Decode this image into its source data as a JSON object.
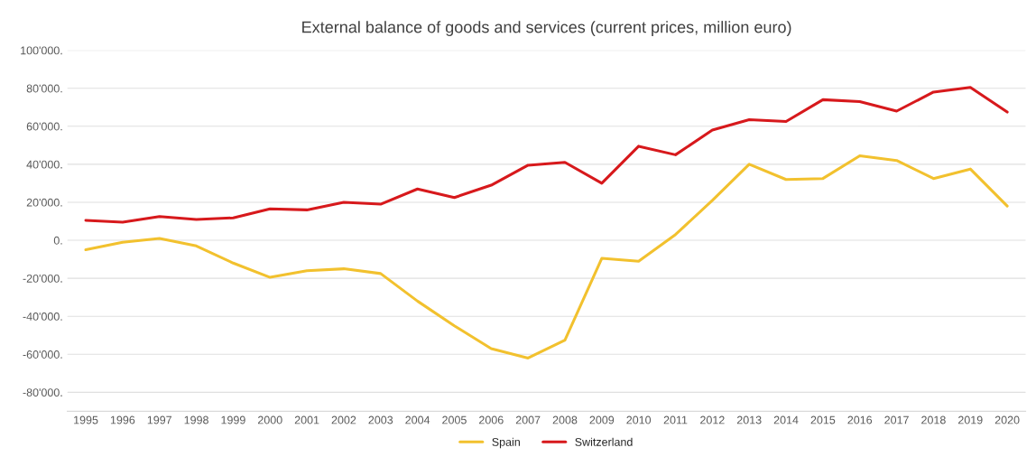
{
  "chart_data": {
    "type": "line",
    "title": "External balance of goods and services (current prices, million euro)",
    "categories": [
      "1995",
      "1996",
      "1997",
      "1998",
      "1999",
      "2000",
      "2001",
      "2002",
      "2003",
      "2004",
      "2005",
      "2006",
      "2007",
      "2008",
      "2009",
      "2010",
      "2011",
      "2012",
      "2013",
      "2014",
      "2015",
      "2016",
      "2017",
      "2018",
      "2019",
      "2020"
    ],
    "series": [
      {
        "name": "Spain",
        "color": "#f2c12e",
        "values": [
          -5000,
          -1000,
          1000,
          -3000,
          -12000,
          -19500,
          -16000,
          -15000,
          -17500,
          -32000,
          -45000,
          -57000,
          -62000,
          -52500,
          -9500,
          -11000,
          3000,
          21000,
          40000,
          32000,
          32500,
          44500,
          42000,
          32500,
          37500,
          18000
        ]
      },
      {
        "name": "Switzerland",
        "color": "#d7191c",
        "values": [
          10500,
          9500,
          12500,
          11000,
          11800,
          16500,
          16000,
          20000,
          19000,
          27000,
          22500,
          29000,
          39500,
          41000,
          30000,
          49500,
          45000,
          58000,
          63500,
          62500,
          74000,
          73000,
          68000,
          78000,
          80500,
          67500
        ]
      }
    ],
    "ylim": [
      -90000,
      100000
    ],
    "yticks": [
      {
        "value": -80000,
        "label": "-80'000."
      },
      {
        "value": -60000,
        "label": "-60'000."
      },
      {
        "value": -40000,
        "label": "-40'000."
      },
      {
        "value": -20000,
        "label": "-20'000."
      },
      {
        "value": 0,
        "label": "0."
      },
      {
        "value": 20000,
        "label": "20'000."
      },
      {
        "value": 40000,
        "label": "40'000."
      },
      {
        "value": 60000,
        "label": "60'000."
      },
      {
        "value": 80000,
        "label": "80'000."
      },
      {
        "value": 100000,
        "label": "100'000."
      }
    ],
    "grid": "y",
    "legend": "bottom",
    "marker": "none",
    "line_style": "solid"
  }
}
